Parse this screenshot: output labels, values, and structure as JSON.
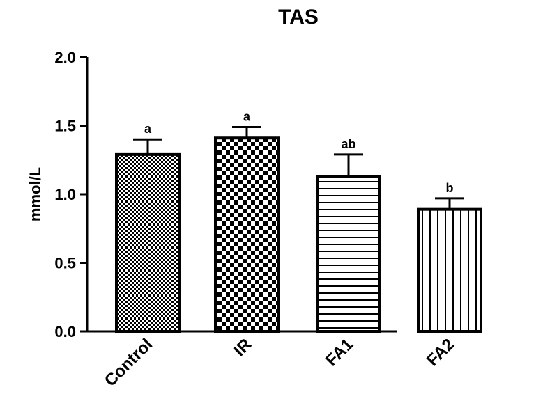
{
  "chart_data": {
    "type": "bar",
    "title": "TAS",
    "ylabel": "mmol/L",
    "xlabel": "",
    "categories": [
      "Control",
      "IR",
      "FA1",
      "FA2"
    ],
    "values": [
      1.29,
      1.41,
      1.13,
      0.89
    ],
    "errors": [
      0.11,
      0.08,
      0.16,
      0.08
    ],
    "significance_labels": [
      "a",
      "a",
      "ab",
      "b"
    ],
    "patterns": [
      "fine-checker",
      "coarse-checker",
      "horizontal-stripes",
      "vertical-stripes"
    ],
    "ylim": [
      0,
      2.0
    ],
    "yticks": [
      "0.0",
      "0.5",
      "1.0",
      "1.5",
      "2.0"
    ],
    "ytick_values": [
      0,
      0.5,
      1.0,
      1.5,
      2.0
    ],
    "grid": false,
    "colors": {
      "bar_fill": "#ffffff",
      "pattern": "#000000",
      "axis": "#000000"
    }
  }
}
